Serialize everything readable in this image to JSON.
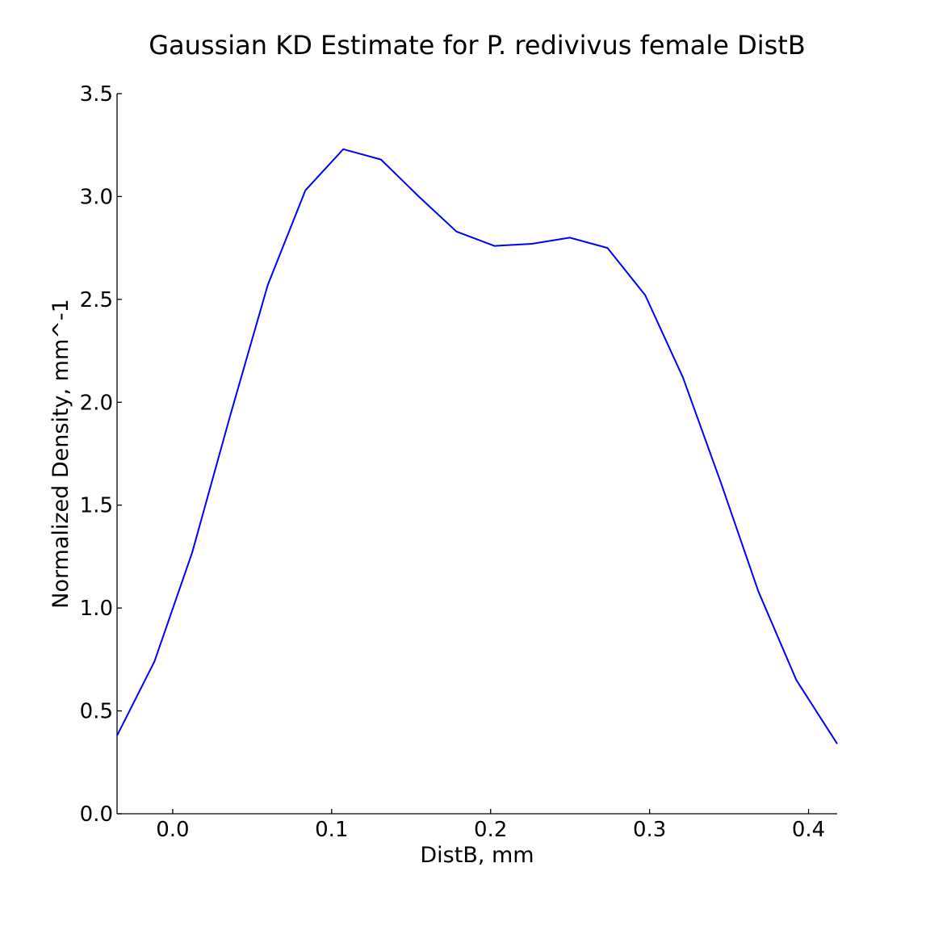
{
  "chart_data": {
    "type": "line",
    "title": "Gaussian KD Estimate for P. redivivus female DistB",
    "xlabel": "DistB, mm",
    "ylabel": "Normalized Density, mm^-1",
    "xlim": [
      -0.035,
      0.418
    ],
    "ylim": [
      0,
      3.5
    ],
    "xticks": [
      0.0,
      0.1,
      0.2,
      0.3,
      0.4
    ],
    "xtick_labels": [
      "0.0",
      "0.1",
      "0.2",
      "0.3",
      "0.4"
    ],
    "yticks": [
      0.0,
      0.5,
      1.0,
      1.5,
      2.0,
      2.5,
      3.0,
      3.5
    ],
    "ytick_labels": [
      "0.0",
      "0.5",
      "1.0",
      "1.5",
      "2.0",
      "2.5",
      "3.0",
      "3.5"
    ],
    "grid": false,
    "series": [
      {
        "color": "#0000ff",
        "x": [
          -0.035,
          -0.0115,
          0.0123,
          0.036,
          0.0598,
          0.0835,
          0.1073,
          0.131,
          0.1548,
          0.1785,
          0.2023,
          0.226,
          0.2498,
          0.2735,
          0.2973,
          0.321,
          0.3448,
          0.3685,
          0.3923,
          0.418
        ],
        "y": [
          0.38,
          0.74,
          1.27,
          1.93,
          2.57,
          3.03,
          3.23,
          3.18,
          3.0,
          2.83,
          2.76,
          2.77,
          2.8,
          2.75,
          2.52,
          2.12,
          1.61,
          1.08,
          0.65,
          0.34
        ]
      }
    ]
  }
}
